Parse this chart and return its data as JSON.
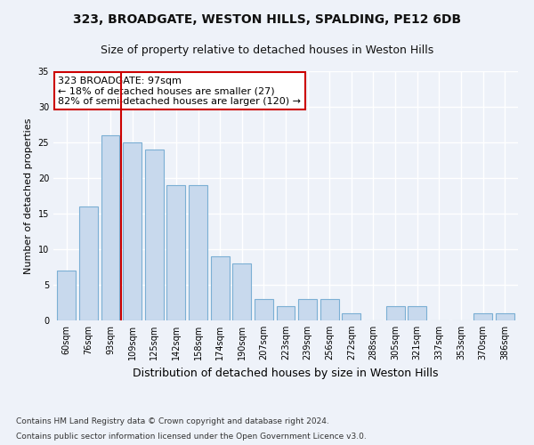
{
  "title1": "323, BROADGATE, WESTON HILLS, SPALDING, PE12 6DB",
  "title2": "Size of property relative to detached houses in Weston Hills",
  "xlabel": "Distribution of detached houses by size in Weston Hills",
  "ylabel": "Number of detached properties",
  "categories": [
    "60sqm",
    "76sqm",
    "93sqm",
    "109sqm",
    "125sqm",
    "142sqm",
    "158sqm",
    "174sqm",
    "190sqm",
    "207sqm",
    "223sqm",
    "239sqm",
    "256sqm",
    "272sqm",
    "288sqm",
    "305sqm",
    "321sqm",
    "337sqm",
    "353sqm",
    "370sqm",
    "386sqm"
  ],
  "values": [
    7,
    16,
    26,
    25,
    24,
    19,
    19,
    9,
    8,
    3,
    2,
    3,
    3,
    1,
    0,
    2,
    2,
    0,
    0,
    1,
    1
  ],
  "bar_color": "#c8d9ed",
  "bar_edge_color": "#7bafd4",
  "bar_linewidth": 0.8,
  "vline_x_index": 2.5,
  "vline_color": "#cc0000",
  "annotation_text": "323 BROADGATE: 97sqm\n← 18% of detached houses are smaller (27)\n82% of semi-detached houses are larger (120) →",
  "annotation_box_color": "#ffffff",
  "annotation_border_color": "#cc0000",
  "ylim": [
    0,
    35
  ],
  "yticks": [
    0,
    5,
    10,
    15,
    20,
    25,
    30,
    35
  ],
  "footnote1": "Contains HM Land Registry data © Crown copyright and database right 2024.",
  "footnote2": "Contains public sector information licensed under the Open Government Licence v3.0.",
  "bg_color": "#eef2f9",
  "grid_color": "#ffffff",
  "title1_fontsize": 10,
  "title2_fontsize": 9,
  "xlabel_fontsize": 9,
  "ylabel_fontsize": 8,
  "tick_fontsize": 7,
  "footnote_fontsize": 6.5,
  "annotation_fontsize": 8
}
